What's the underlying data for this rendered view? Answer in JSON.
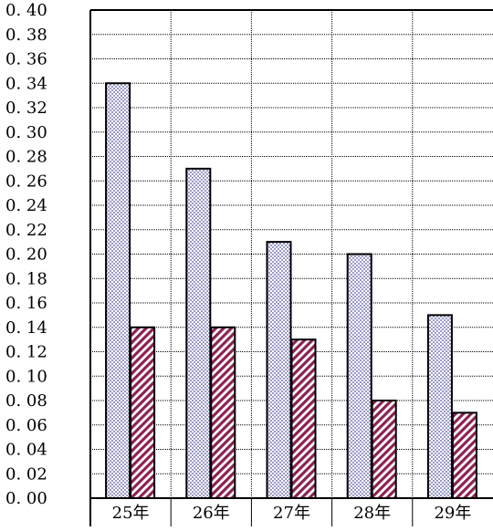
{
  "chart_data": {
    "type": "bar",
    "title": "",
    "xlabel": "",
    "ylabel": "",
    "categories": [
      "25年",
      "26年",
      "27年",
      "28年",
      "29年"
    ],
    "series": [
      {
        "values": [
          0.34,
          0.27,
          0.21,
          0.2,
          0.15
        ],
        "color": "#9a9ac8",
        "pattern": "checker"
      },
      {
        "values": [
          0.14,
          0.14,
          0.13,
          0.08,
          0.07
        ],
        "color": "#8b2252",
        "pattern": "diagonal-stripes"
      }
    ],
    "ylim": [
      0,
      0.4
    ],
    "y_ticks": [
      "0.00",
      "0.02",
      "0.04",
      "0.06",
      "0.08",
      "0.10",
      "0.12",
      "0.14",
      "0.16",
      "0.18",
      "0.20",
      "0.22",
      "0.24",
      "0.26",
      "0.28",
      "0.30",
      "0.32",
      "0.34",
      "0.36",
      "0.38",
      "0.40"
    ],
    "grid": true,
    "legend": "none"
  }
}
